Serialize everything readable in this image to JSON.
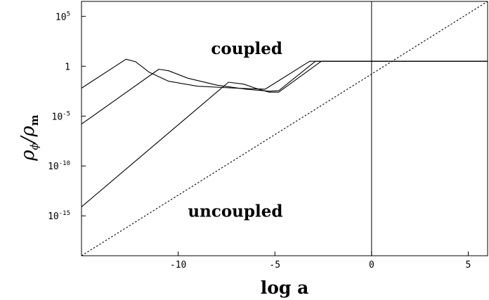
{
  "chart_data": {
    "type": "line",
    "xlabel": "log a",
    "ylabel": {
      "rho": "ρ",
      "phi": "ϕ",
      "slash": "/",
      "m": "m"
    },
    "xlim": [
      -15,
      6
    ],
    "ylim_log10": [
      -19,
      6.5
    ],
    "yscale": "log",
    "grid": false,
    "x_ticks": [
      {
        "value": -10,
        "label": "-10"
      },
      {
        "value": -5,
        "label": "-5"
      },
      {
        "value": 0,
        "label": "0"
      },
      {
        "value": 5,
        "label": "5"
      }
    ],
    "y_ticks": [
      {
        "value": 5,
        "base": "10",
        "exp": "5"
      },
      {
        "value": 0,
        "base": "1",
        "exp": ""
      },
      {
        "value": -5,
        "base": "10",
        "exp": "-5"
      },
      {
        "value": -10,
        "base": "10",
        "exp": "-10"
      },
      {
        "value": -15,
        "base": "10",
        "exp": "-15"
      }
    ],
    "vertical_line_x": 0,
    "annotations": [
      {
        "id": "coupled",
        "text": "coupled",
        "x": -8.3,
        "y_log10": 1.2
      },
      {
        "id": "uncoupled",
        "text": "uncoupled",
        "x": -9.5,
        "y_log10": -15.1
      }
    ],
    "series": [
      {
        "style": "solid",
        "x": [
          -15,
          -12.7,
          -12.2,
          -11.5,
          -10.5,
          -9,
          -7,
          -5.5,
          -3.2,
          6
        ],
        "y": [
          -2.2,
          0.7,
          0.45,
          -0.6,
          -1.5,
          -2.0,
          -2.2,
          -2.3,
          0.5,
          0.5
        ]
      },
      {
        "style": "solid",
        "x": [
          -15,
          -11.0,
          -10.5,
          -9.5,
          -8,
          -6.5,
          -5.3,
          -4.8,
          -2.9,
          6
        ],
        "y": [
          -5.8,
          -0.3,
          -0.45,
          -1.2,
          -1.9,
          -2.3,
          -2.5,
          -2.45,
          0.5,
          0.5
        ]
      },
      {
        "style": "solid",
        "x": [
          -15,
          -7.4,
          -6.6,
          -6,
          -5.3,
          -4.8,
          -2.6,
          6
        ],
        "y": [
          -14.1,
          -1.6,
          -1.8,
          -2.2,
          -2.6,
          -2.6,
          0.5,
          0.5
        ]
      },
      {
        "style": "dashed",
        "x": [
          -15,
          6
        ],
        "y": [
          -19,
          6.5
        ]
      }
    ]
  }
}
